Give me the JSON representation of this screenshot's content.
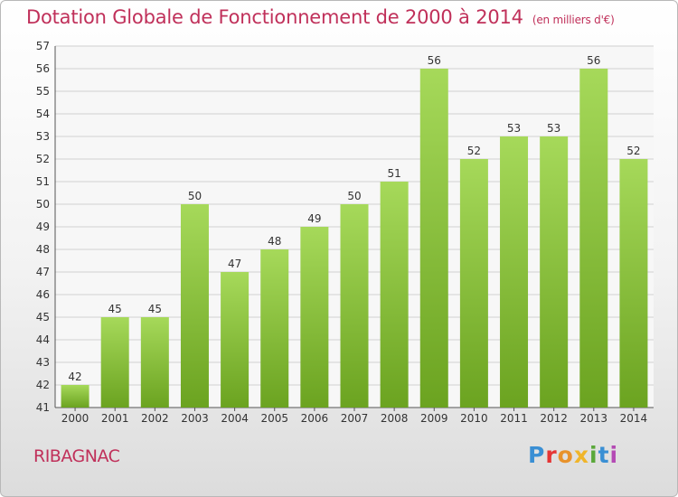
{
  "header": {
    "title": "Dotation Globale de Fonctionnement de 2000 à 2014",
    "unit": "(en milliers d'€)"
  },
  "footer": {
    "commune": "RIBAGNAC",
    "logo": "Proxiti"
  },
  "colors": {
    "title": "#c0305a",
    "bar_light": "#a6d95a",
    "bar_dark": "#6ba320"
  },
  "chart_data": {
    "type": "bar",
    "title": "Dotation Globale de Fonctionnement de 2000 à 2014",
    "subtitle": "(en milliers d'€)",
    "xlabel": "",
    "ylabel": "",
    "categories": [
      "2000",
      "2001",
      "2002",
      "2003",
      "2004",
      "2005",
      "2006",
      "2007",
      "2008",
      "2009",
      "2010",
      "2011",
      "2012",
      "2013",
      "2014"
    ],
    "values": [
      42,
      45,
      45,
      50,
      47,
      48,
      49,
      50,
      51,
      56,
      52,
      53,
      53,
      56,
      52
    ],
    "ylim": [
      41,
      57
    ],
    "yticks": [
      41,
      42,
      43,
      44,
      45,
      46,
      47,
      48,
      49,
      50,
      51,
      52,
      53,
      54,
      55,
      56,
      57
    ],
    "grid": true,
    "data_labels": true
  }
}
